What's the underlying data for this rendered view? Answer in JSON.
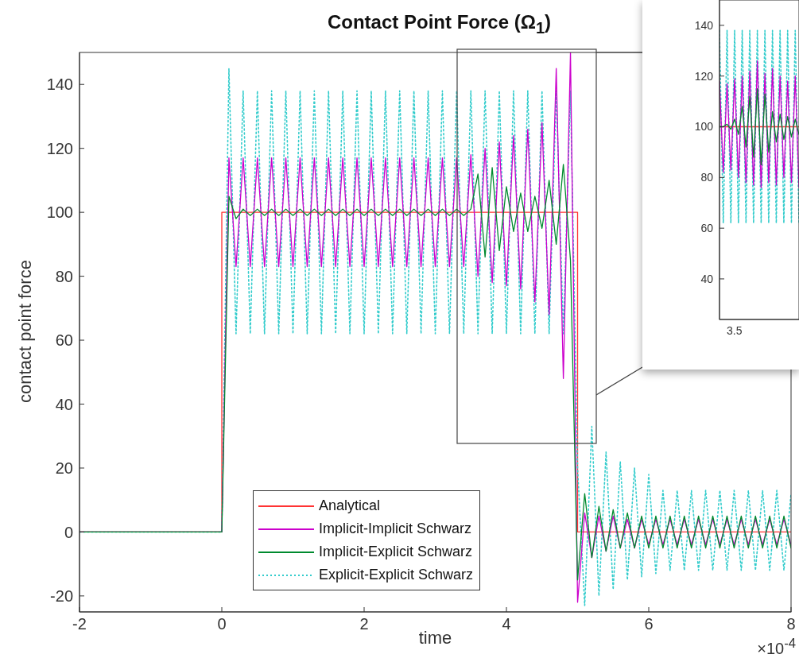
{
  "chart_data": [
    {
      "type": "line",
      "title": "Contact Point Force (Ω$_{1}$)",
      "xlabel": "time",
      "ylabel": "contact point force",
      "annotations": [
        "×10$^{-4}$"
      ],
      "legend": "bottom",
      "xlim": [
        -2,
        8
      ],
      "xticks": [
        -2,
        0,
        2,
        4,
        6,
        8
      ],
      "ylim": [
        -25,
        150
      ],
      "yticks": [
        -20,
        0,
        20,
        40,
        60,
        80,
        100,
        120,
        140
      ],
      "x": [
        -2,
        0,
        0.1,
        0.2,
        0.3,
        0.4,
        0.5,
        0.6,
        0.7,
        0.8,
        0.9,
        1,
        1.1,
        1.2,
        1.3,
        1.4,
        1.5,
        1.6,
        1.7,
        1.8,
        1.9,
        2,
        2.1,
        2.2,
        2.3,
        2.4,
        2.5,
        2.6,
        2.7,
        2.8,
        2.9,
        3,
        3.1,
        3.2,
        3.3,
        3.4,
        3.5,
        3.6,
        3.7,
        3.8,
        3.9,
        4,
        4.1,
        4.2,
        4.3,
        4.4,
        4.5,
        4.6,
        4.7,
        4.8,
        4.9,
        5,
        5.1,
        5.2,
        5.3,
        5.4,
        5.5,
        5.6,
        5.7,
        5.8,
        5.9,
        6,
        6.1,
        6.2,
        6.3,
        6.4,
        6.5,
        6.6,
        6.7,
        6.8,
        6.9,
        7,
        7.1,
        7.2,
        7.3,
        7.4,
        7.5,
        7.6,
        7.7,
        7.8,
        7.9,
        8
      ],
      "series": [
        {
          "name": "Analytical",
          "color": "#ff3333",
          "x": [
            -2,
            0,
            0,
            5,
            5,
            8
          ],
          "values": [
            0,
            0,
            100,
            100,
            0,
            0
          ]
        },
        {
          "name": "Implicit-Implicit Schwarz",
          "color": "#cc00cc",
          "values": [
            0,
            0,
            117,
            83,
            117,
            83,
            117,
            83,
            117,
            83,
            117,
            83,
            117,
            83,
            117,
            83,
            117,
            83,
            117,
            83,
            117,
            83,
            117,
            83,
            117,
            83,
            117,
            83,
            117,
            83,
            117,
            83,
            117,
            83,
            117,
            83,
            118,
            80,
            120,
            78,
            122,
            77,
            124,
            76,
            126,
            72,
            128,
            68,
            145,
            48,
            150,
            -22,
            6,
            -8,
            5,
            -6,
            5,
            -5,
            4,
            -5,
            4,
            -4,
            4,
            -4,
            4,
            -4,
            4,
            -4,
            4,
            -4,
            4,
            -4,
            4,
            -4,
            4,
            -4,
            4,
            -4,
            4,
            -4,
            4,
            -4
          ]
        },
        {
          "name": "Implicit-Explicit Schwarz",
          "color": "#008a2e",
          "values": [
            0,
            0,
            105,
            98,
            101,
            99,
            101,
            99,
            101,
            99,
            101,
            99,
            101,
            99,
            101,
            99,
            101,
            99,
            101,
            99,
            101,
            99,
            101,
            99,
            101,
            99,
            101,
            99,
            101,
            99,
            101,
            99,
            101,
            99,
            101,
            99,
            101,
            112,
            86,
            114,
            88,
            108,
            94,
            106,
            94,
            105,
            95,
            110,
            90,
            115,
            85,
            -15,
            12,
            -8,
            8,
            -6,
            7,
            -5,
            6,
            -5,
            5,
            -5,
            5,
            -5,
            5,
            -5,
            5,
            -5,
            5,
            -5,
            5,
            -5,
            5,
            -5,
            5,
            -5,
            5,
            -5,
            5,
            -5,
            5,
            -5
          ]
        },
        {
          "name": "Explicit-Explicit Schwarz",
          "color": "#33cccc",
          "line_style": "dotted",
          "values": [
            0,
            0,
            145,
            62,
            138,
            62,
            138,
            62,
            138,
            62,
            138,
            62,
            138,
            62,
            138,
            62,
            138,
            62,
            138,
            62,
            138,
            62,
            138,
            62,
            138,
            62,
            138,
            62,
            138,
            62,
            138,
            62,
            138,
            62,
            138,
            62,
            138,
            62,
            138,
            62,
            138,
            62,
            138,
            62,
            138,
            62,
            138,
            62,
            138,
            62,
            138,
            20,
            -23,
            33,
            -20,
            25,
            -18,
            22,
            -15,
            20,
            -14,
            18,
            -13,
            13,
            -12,
            13,
            -12,
            13,
            -12,
            13,
            -12,
            13,
            -12,
            13,
            -12,
            13,
            -12,
            13,
            -12,
            13,
            -12,
            12
          ]
        }
      ]
    },
    {
      "type": "line",
      "annotations": [
        "3.5"
      ],
      "ylim": [
        24,
        150
      ],
      "yticks": [
        40,
        60,
        80,
        100,
        120,
        140
      ],
      "categories": [
        null,
        null,
        null,
        null,
        null,
        null,
        null,
        null,
        null,
        null,
        null,
        null,
        null,
        null,
        null,
        null,
        null,
        null,
        null,
        null,
        null,
        null
      ],
      "series": [
        {
          "color": "#ff3333",
          "values": [
            100,
            100,
            100,
            100,
            100,
            100,
            100,
            100,
            100,
            100,
            100,
            100,
            100,
            100,
            100,
            100,
            100,
            100,
            100,
            100,
            100,
            100
          ]
        },
        {
          "color": "#cc00cc",
          "values": [
            118,
            82,
            117,
            83,
            119,
            80,
            120,
            78,
            122,
            77,
            126,
            76,
            121,
            78,
            123,
            77,
            120,
            80,
            118,
            78,
            120,
            76
          ]
        },
        {
          "color": "#008a2e",
          "values": [
            100,
            100,
            101,
            99,
            103,
            97,
            108,
            92,
            112,
            88,
            115,
            85,
            113,
            90,
            106,
            94,
            105,
            95,
            104,
            96,
            103,
            97
          ]
        },
        {
          "color": "#33cccc",
          "line_style": "dotted",
          "values": [
            138,
            62,
            138,
            62,
            138,
            62,
            138,
            62,
            138,
            62,
            138,
            62,
            138,
            62,
            138,
            62,
            138,
            62,
            138,
            62,
            138,
            62
          ]
        }
      ]
    }
  ]
}
